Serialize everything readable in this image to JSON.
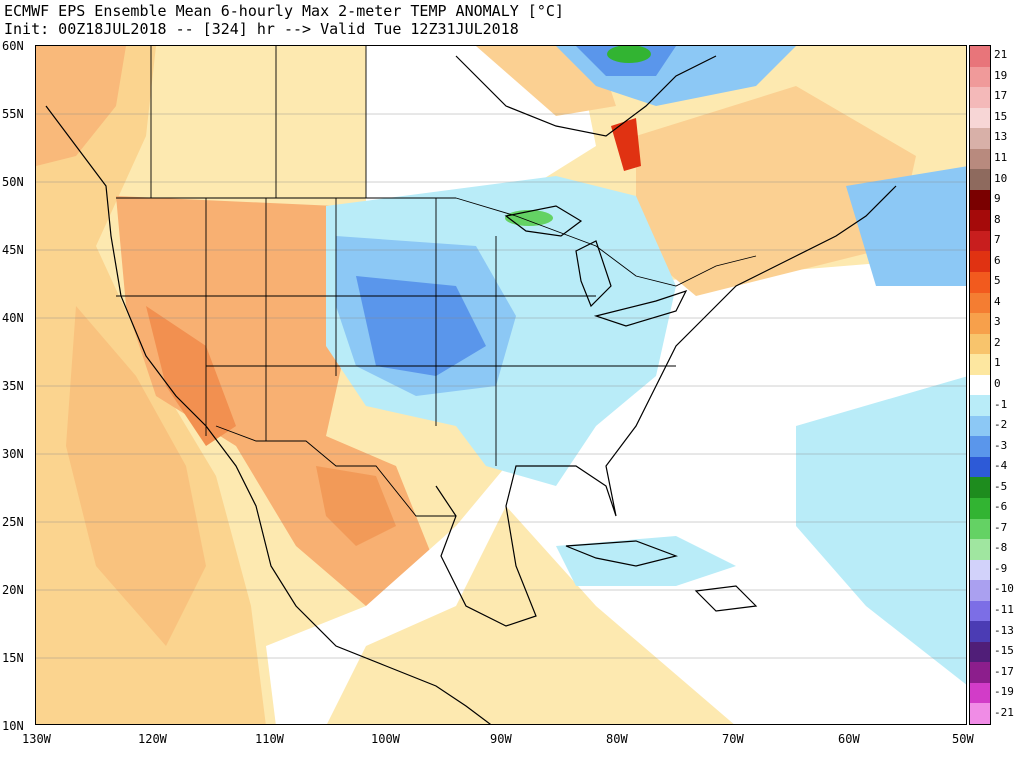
{
  "header": {
    "line1": "ECMWF EPS Ensemble Mean 6-hourly Max 2-meter TEMP ANOMALY [°C]",
    "line2": "Init: 00Z18JUL2018 -- [324] hr --> Valid Tue 12Z31JUL2018"
  },
  "map": {
    "lat_labels": [
      "60N",
      "55N",
      "50N",
      "45N",
      "40N",
      "35N",
      "30N",
      "25N",
      "20N",
      "15N",
      "10N"
    ],
    "lon_labels": [
      "130W",
      "120W",
      "110W",
      "100W",
      "90W",
      "80W",
      "70W",
      "60W",
      "50W"
    ]
  },
  "colorbar": {
    "labels": [
      "21",
      "19",
      "17",
      "15",
      "13",
      "11",
      "10",
      "9",
      "8",
      "7",
      "6",
      "5",
      "4",
      "3",
      "2",
      "1",
      "0",
      "-1",
      "-2",
      "-3",
      "-4",
      "-5",
      "-6",
      "-7",
      "-8",
      "-9",
      "-10",
      "-11",
      "-13",
      "-15",
      "-17",
      "-19",
      "-21"
    ],
    "colors": [
      "#e8757a",
      "#f09a9a",
      "#f4b9b9",
      "#f7d6d6",
      "#d8b0a8",
      "#b88a7e",
      "#8e6a5e",
      "#7a0000",
      "#a50a0a",
      "#c81e1e",
      "#e03212",
      "#f25a1e",
      "#f47d32",
      "#f7a04b",
      "#f8c46c",
      "#fde7a0",
      "#ffffff",
      "#b9ecf8",
      "#8cc8f5",
      "#5a96eb",
      "#2d5ad7",
      "#1e8c1e",
      "#32b432",
      "#64d264",
      "#a0e6a0",
      "#d2d2fa",
      "#aaa0f0",
      "#7c6ee6",
      "#4b3cb4",
      "#501e78",
      "#8c1e8c",
      "#d23cc8",
      "#f08ce6"
    ]
  }
}
